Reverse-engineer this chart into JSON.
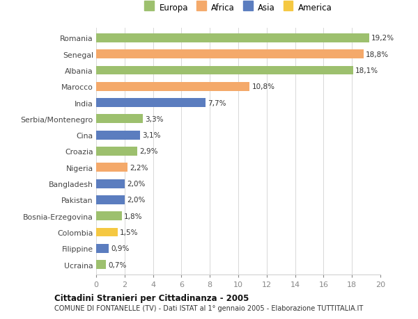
{
  "countries": [
    "Romania",
    "Senegal",
    "Albania",
    "Marocco",
    "India",
    "Serbia/Montenegro",
    "Cina",
    "Croazia",
    "Nigeria",
    "Bangladesh",
    "Pakistan",
    "Bosnia-Erzegovina",
    "Colombia",
    "Filippine",
    "Ucraina"
  ],
  "values": [
    19.2,
    18.8,
    18.1,
    10.8,
    7.7,
    3.3,
    3.1,
    2.9,
    2.2,
    2.0,
    2.0,
    1.8,
    1.5,
    0.9,
    0.7
  ],
  "labels": [
    "19,2%",
    "18,8%",
    "18,1%",
    "10,8%",
    "7,7%",
    "3,3%",
    "3,1%",
    "2,9%",
    "2,2%",
    "2,0%",
    "2,0%",
    "1,8%",
    "1,5%",
    "0,9%",
    "0,7%"
  ],
  "colors": [
    "#9dc06e",
    "#f4a96a",
    "#9dc06e",
    "#f4a96a",
    "#5b7dbf",
    "#9dc06e",
    "#5b7dbf",
    "#9dc06e",
    "#f4a96a",
    "#5b7dbf",
    "#5b7dbf",
    "#9dc06e",
    "#f5c842",
    "#5b7dbf",
    "#9dc06e"
  ],
  "legend_labels": [
    "Europa",
    "Africa",
    "Asia",
    "America"
  ],
  "legend_colors": [
    "#9dc06e",
    "#f4a96a",
    "#5b7dbf",
    "#f5c842"
  ],
  "title": "Cittadini Stranieri per Cittadinanza - 2005",
  "subtitle": "COMUNE DI FONTANELLE (TV) - Dati ISTAT al 1° gennaio 2005 - Elaborazione TUTTITALIA.IT",
  "xlim": [
    0,
    20
  ],
  "xticks": [
    0,
    2,
    4,
    6,
    8,
    10,
    12,
    14,
    16,
    18,
    20
  ],
  "background_color": "#ffffff",
  "grid_color": "#d8d8d8",
  "bar_height": 0.55
}
